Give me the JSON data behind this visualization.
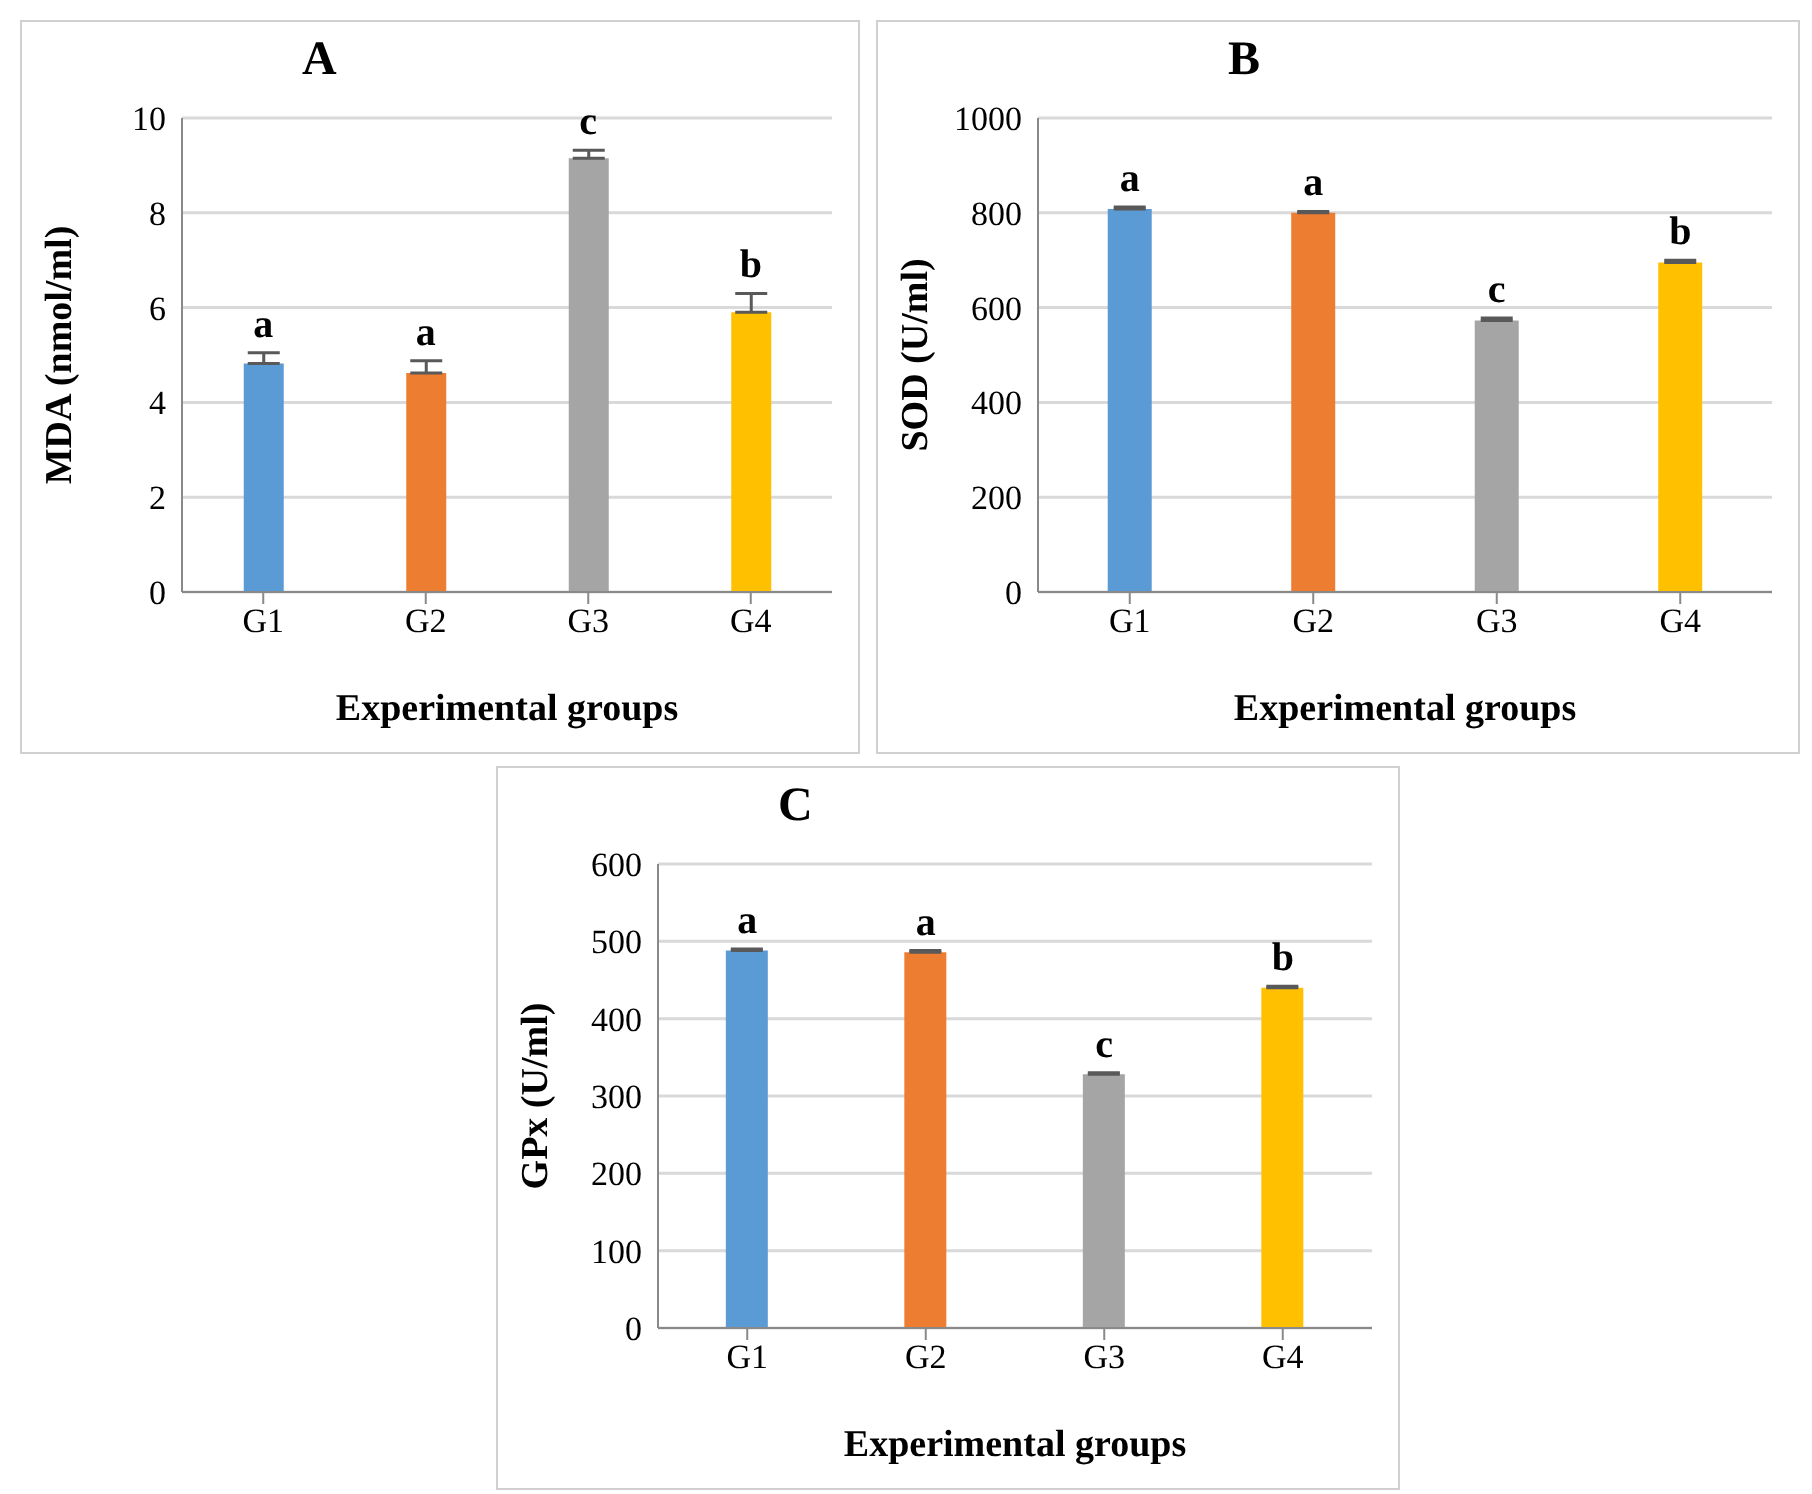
{
  "chart_data": [
    {
      "type": "bar",
      "title": "A",
      "categories": [
        "G1",
        "G2",
        "G3",
        "G4"
      ],
      "values": [
        4.82,
        4.62,
        9.15,
        5.9
      ],
      "colors": [
        "#5b9bd5",
        "#ed7d31",
        "#a5a5a5",
        "#ffc000"
      ],
      "errors": [
        [
          4.82,
          5.05
        ],
        [
          4.62,
          4.88
        ],
        [
          9.15,
          9.32
        ],
        [
          5.9,
          6.3
        ]
      ],
      "ylim": [
        0,
        10
      ],
      "yticks": [
        0,
        2,
        4,
        6,
        8,
        10
      ],
      "grid": "y",
      "xlabel": "Experimental groups",
      "ylabel": "MDA (nmol/ml)",
      "annotations": [
        {
          "text": "a",
          "x": "G1",
          "y": 5.05
        },
        {
          "text": "a",
          "x": "G2",
          "y": 4.88
        },
        {
          "text": "c",
          "x": "G3",
          "y": 9.32
        },
        {
          "text": "b",
          "x": "G4",
          "y": 6.3
        }
      ]
    },
    {
      "type": "bar",
      "title": "B",
      "categories": [
        "G1",
        "G2",
        "G3",
        "G4"
      ],
      "values": [
        808,
        800,
        573,
        695
      ],
      "colors": [
        "#5b9bd5",
        "#ed7d31",
        "#a5a5a5",
        "#ffc000"
      ],
      "errors": [
        [
          808,
          812
        ],
        [
          800,
          803
        ],
        [
          573,
          578
        ],
        [
          695,
          700
        ]
      ],
      "ylim": [
        0,
        1000
      ],
      "yticks": [
        0,
        200,
        400,
        600,
        800,
        1000
      ],
      "grid": "y",
      "xlabel": "Experimental groups",
      "ylabel": "SOD (U/ml)",
      "annotations": [
        {
          "text": "a",
          "x": "G1",
          "y": 812
        },
        {
          "text": "a",
          "x": "G2",
          "y": 803
        },
        {
          "text": "c",
          "x": "G3",
          "y": 578
        },
        {
          "text": "b",
          "x": "G4",
          "y": 700
        }
      ]
    },
    {
      "type": "bar",
      "title": "C",
      "categories": [
        "G1",
        "G2",
        "G3",
        "G4"
      ],
      "values": [
        488,
        486,
        328,
        440
      ],
      "colors": [
        "#5b9bd5",
        "#ed7d31",
        "#a5a5a5",
        "#ffc000"
      ],
      "errors": [
        [
          488,
          490
        ],
        [
          486,
          488
        ],
        [
          328,
          330
        ],
        [
          440,
          442
        ]
      ],
      "ylim": [
        0,
        600
      ],
      "yticks": [
        0,
        100,
        200,
        300,
        400,
        500,
        600
      ],
      "grid": "y",
      "xlabel": "Experimental groups",
      "ylabel": "GPx (U/ml)",
      "annotations": [
        {
          "text": "a",
          "x": "G1",
          "y": 490
        },
        {
          "text": "a",
          "x": "G2",
          "y": 488
        },
        {
          "text": "c",
          "x": "G3",
          "y": 330
        },
        {
          "text": "b",
          "x": "G4",
          "y": 442
        }
      ]
    }
  ]
}
